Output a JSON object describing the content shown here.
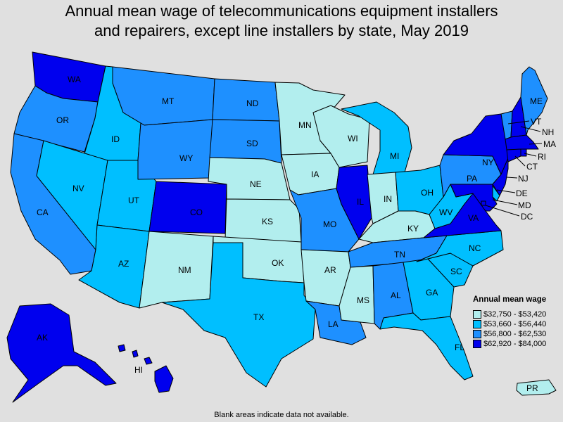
{
  "title_lines": [
    "Annual mean wage of telecommunications equipment installers",
    "and repairers, except line installers by state, May 2019"
  ],
  "legend": {
    "title": "Annual mean wage",
    "items": [
      {
        "label": "$32,750 - $53,420",
        "color": "#b2eeee"
      },
      {
        "label": "$53,660 - $56,440",
        "color": "#00bfff"
      },
      {
        "label": "$56,800 - $62,530",
        "color": "#1e90ff"
      },
      {
        "label": "$62,920 - $84,000",
        "color": "#0000ee"
      }
    ]
  },
  "footnote": "Blank areas indicate data not available.",
  "states": {
    "WA": 4,
    "OR": 3,
    "CA": 3,
    "ID": 2,
    "NV": 2,
    "UT": 2,
    "AZ": 2,
    "MT": 3,
    "WY": 3,
    "CO": 4,
    "NM": 1,
    "ND": 3,
    "SD": 3,
    "NE": 1,
    "KS": 1,
    "OK": 1,
    "TX": 2,
    "MN": 1,
    "IA": 1,
    "MO": 3,
    "AR": 1,
    "LA": 3,
    "WI": 1,
    "IL": 4,
    "MI": 2,
    "IN": 1,
    "OH": 2,
    "KY": 1,
    "TN": 3,
    "MS": 1,
    "AL": 3,
    "GA": 2,
    "FL": 2,
    "SC": 2,
    "NC": 2,
    "VA": 4,
    "WV": 2,
    "PA": 3,
    "NY": 4,
    "VT": 3,
    "NH": 4,
    "ME": 3,
    "MA": 4,
    "RI": 4,
    "CT": 4,
    "NJ": 4,
    "DE": 2,
    "MD": 4,
    "DC": 4,
    "AK": 4,
    "HI": 4,
    "PR": 1
  }
}
